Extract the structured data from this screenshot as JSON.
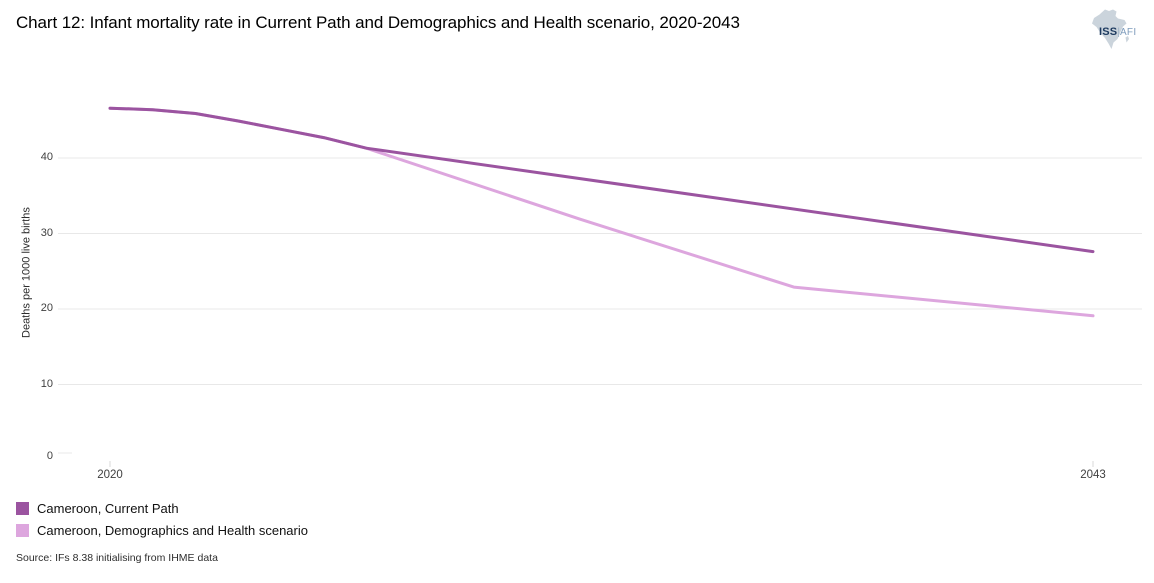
{
  "header": {
    "title": "Chart 12: Infant mortality rate in Current Path and Demographics and Health scenario, 2020-2043"
  },
  "logo": {
    "iss": "ISS",
    "sep": "|",
    "afi": "AFI",
    "africa_fill": "#cbd4dc"
  },
  "chart_data": {
    "type": "line",
    "title": "Chart 12: Infant mortality rate in Current Path and Demographics and Health scenario, 2020-2043",
    "xlabel": "",
    "ylabel": "Deaths per 1000 live births",
    "xlim": [
      2020,
      2043
    ],
    "ylim": [
      0,
      48
    ],
    "yticks": [
      0,
      10,
      20,
      30,
      40
    ],
    "xticks": [
      2020,
      2043
    ],
    "grid": true,
    "gridline_color": "#e8e8e8",
    "legend_position": "bottom-left",
    "series": [
      {
        "name": "Cameroon, Current Path",
        "color": "#9b54a0",
        "x": [
          2020,
          2021,
          2022,
          2023,
          2024,
          2025,
          2026,
          2043
        ],
        "values": [
          46.6,
          46.4,
          45.9,
          44.9,
          43.8,
          42.7,
          41.3,
          27.6
        ]
      },
      {
        "name": "Cameroon, Demographics and Health scenario",
        "color": "#dda6de",
        "x": [
          2020,
          2021,
          2022,
          2023,
          2024,
          2025,
          2026,
          2031,
          2036,
          2043
        ],
        "values": [
          46.6,
          46.4,
          45.9,
          44.9,
          43.8,
          42.7,
          41.3,
          31.9,
          22.9,
          19.1
        ]
      }
    ]
  },
  "source": "Source: IFs 8.38 initialising from IHME data"
}
